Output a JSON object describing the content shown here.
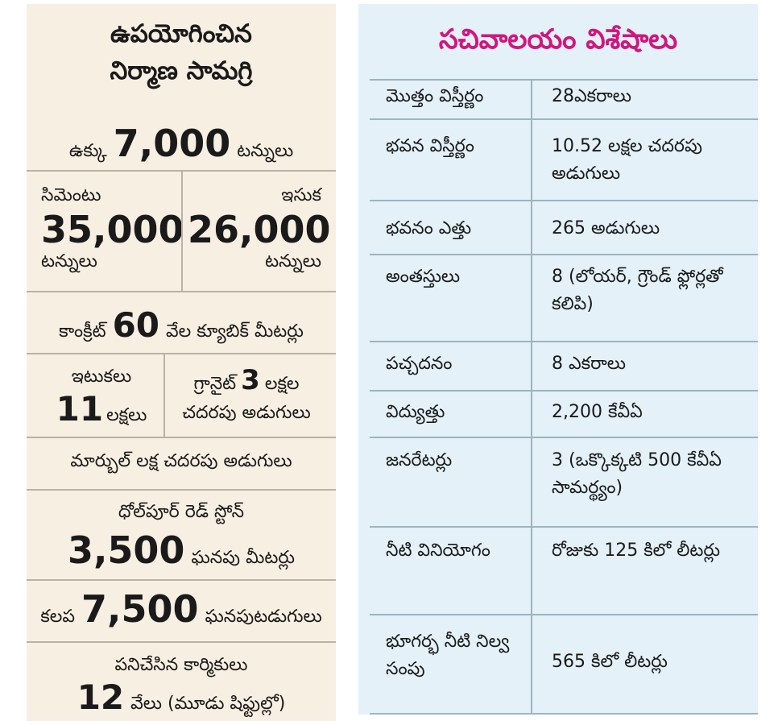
{
  "left": {
    "title_line1": "ఉపయోగించిన",
    "title_line2": "నిర్మాణ సామగ్రి",
    "steel": {
      "label": "ఉక్కు",
      "value": "7,000",
      "unit": "టన్నులు"
    },
    "cement": {
      "label": "సిమెంటు",
      "value": "35,000",
      "unit": "టన్నులు"
    },
    "sand": {
      "label": "ఇసుక",
      "value": "26,000",
      "unit": "టన్నులు"
    },
    "concrete": {
      "label": "కాంక్రీట్",
      "value": "60",
      "unit": "వేల క్యూబిక్ మీటర్లు"
    },
    "bricks": {
      "label": "ఇటుకలు",
      "value": "11",
      "unit": "లక్షలు"
    },
    "granite": {
      "label": "గ్రానైట్",
      "value": "3",
      "unit": "లక్షల",
      "unit2": "చదరపు అడుగులు"
    },
    "marble": {
      "text": "మార్బుల్ లక్ష చదరపు అడుగులు"
    },
    "dholpur": {
      "label": "ధోల్‌పూర్ రెడ్ స్టోన్",
      "value": "3,500",
      "unit": "ఘనపు మీటర్లు"
    },
    "wood": {
      "label": "కలప",
      "value": "7,500",
      "unit": "ఘనపుటడుగులు"
    },
    "workers": {
      "label": "పనిచేసిన కార్మికులు",
      "value": "12",
      "unit": "వేలు (మూడు షిఫ్టుల్లో)"
    }
  },
  "right": {
    "title": "సచివాలయం విశేషాలు",
    "rows": [
      {
        "label": "మొత్తం విస్తీర్ణం",
        "value": "28ఎకరాలు"
      },
      {
        "label": "భవన విస్తీర్ణం",
        "value": "10.52 లక్షల చదరపు అడుగులు"
      },
      {
        "label": "భవనం ఎత్తు",
        "value": "265 అడుగులు"
      },
      {
        "label": "అంతస్తులు",
        "value": "8 (లోయర్, గ్రౌండ్ ఫ్లోర్లతో కలిపి)"
      },
      {
        "label": "పచ్చదనం",
        "value": "8 ఎకరాలు"
      },
      {
        "label": "విద్యుత్తు",
        "value": "2,200 కేవీఏ"
      },
      {
        "label": "జనరేటర్లు",
        "value": "3 (ఒక్కొక్కటి 500 కేవీఏ సామర్థ్యం)"
      },
      {
        "label": "నీటి వినియోగం",
        "value": "రోజుకు 125 కిలో లీటర్లు"
      },
      {
        "label": "భూగర్భ నీటి నిల్వ సంపు",
        "value": "565 కిలో లీటర్లు"
      }
    ]
  }
}
